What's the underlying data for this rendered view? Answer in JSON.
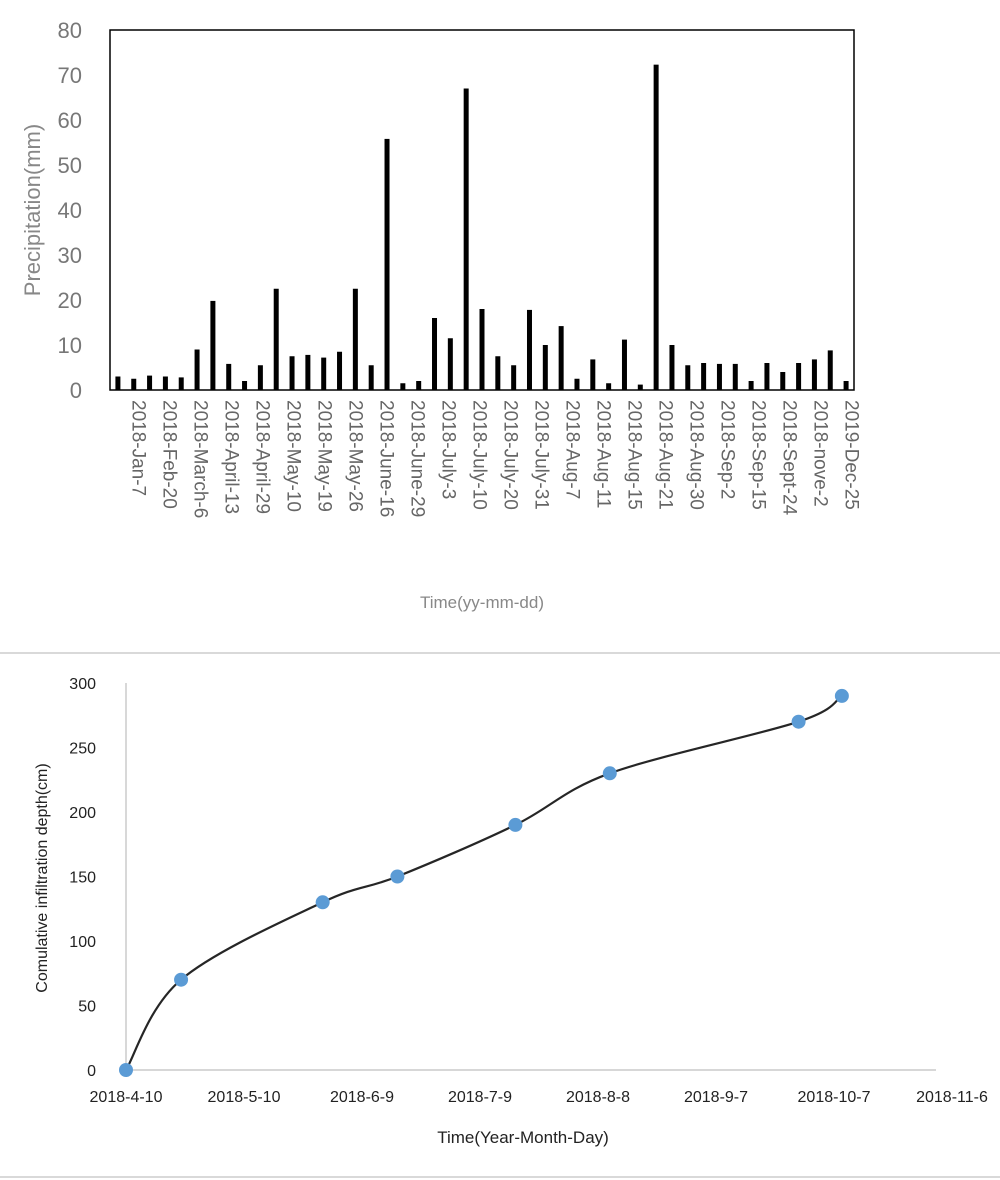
{
  "chart_data": [
    {
      "type": "bar",
      "title": "",
      "xlabel": "Time(yy-mm-dd)",
      "ylabel": "Precipitation(mm)",
      "ylim": [
        0,
        80
      ],
      "yticks": [
        0,
        10,
        20,
        30,
        40,
        50,
        60,
        70,
        80
      ],
      "grid": false,
      "legend": "none",
      "bar_color": "#000000",
      "tick_labels": [
        "2018-Jan-7",
        "2018-Feb-20",
        "2018-March-6",
        "2018-April-13",
        "2018-April-29",
        "2018-May-10",
        "2018-May-19",
        "2018-May-26",
        "2018-June-16",
        "2018-June-29",
        "2018-July-3",
        "2018-July-10",
        "2018-July-20",
        "2018-July-31",
        "2018-Aug-7",
        "2018-Aug-11",
        "2018-Aug-15",
        "2018-Aug-21",
        "2018-Aug-30",
        "2018-Sep-2",
        "2018-Sep-15",
        "2018-Sept-24",
        "2018-nove-2",
        "2019-Dec-25"
      ],
      "values": [
        3,
        2.5,
        3.2,
        3,
        2.8,
        9,
        19.8,
        5.8,
        2,
        5.5,
        22.5,
        7.5,
        7.8,
        7.2,
        8.5,
        22.5,
        5.5,
        55.8,
        1.5,
        2,
        16,
        11.5,
        67,
        18,
        7.5,
        5.5,
        17.8,
        10,
        14.2,
        2.5,
        6.8,
        1.5,
        11.2,
        1.2,
        72.3,
        10,
        5.5,
        6,
        5.8,
        5.8,
        2,
        6,
        4,
        6,
        6.8,
        8.8,
        2
      ]
    },
    {
      "type": "line",
      "title": "",
      "xlabel": "Time(Year-Month-Day)",
      "ylabel": "Comulative infiltration depth(cm)",
      "ylim": [
        0,
        300
      ],
      "yticks": [
        0,
        50,
        100,
        150,
        200,
        250,
        300
      ],
      "xlim": [
        "2018-4-10",
        "2018-11-6"
      ],
      "xticks": [
        "2018-4-10",
        "2018-5-10",
        "2018-6-9",
        "2018-7-9",
        "2018-8-8",
        "2018-9-7",
        "2018-10-7",
        "2018-11-6"
      ],
      "grid": false,
      "legend": "none",
      "line_color": "#262626",
      "marker_color": "#5b9bd5",
      "series": [
        {
          "x": [
            "2018-4-10",
            "2018-4-24",
            "2018-5-30",
            "2018-6-18",
            "2018-7-18",
            "2018-8-11",
            "2018-9-28",
            "2018-10-9"
          ],
          "y": [
            0,
            70,
            130,
            150,
            190,
            230,
            270,
            290
          ]
        }
      ]
    }
  ]
}
